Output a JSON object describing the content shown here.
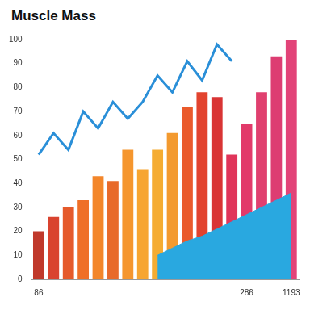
{
  "chart_data": {
    "type": "bar",
    "title": "Muscle Mass",
    "categories": [
      "86",
      null,
      null,
      null,
      null,
      null,
      null,
      null,
      null,
      null,
      null,
      null,
      null,
      null,
      "286",
      null,
      null,
      "1193"
    ],
    "series": [
      {
        "type": "area",
        "color": "#29a8e0",
        "values": [
          null,
          null,
          null,
          null,
          null,
          null,
          null,
          null,
          10,
          13,
          16,
          18,
          21,
          24,
          27,
          30,
          33,
          36
        ]
      },
      {
        "type": "bar",
        "colors": [
          "#c0392b",
          "#d9432f",
          "#e55a2b",
          "#ef6f27",
          "#f3862a",
          "#e86a2a",
          "#f5962e",
          "#f7a531",
          "#f5ac32",
          "#f39a2f",
          "#ea5a2b",
          "#e2432e",
          "#d93434",
          "#e0355a",
          "#e23a6a",
          "#e0406f",
          "#dd3d72",
          "#e24378"
        ],
        "values": [
          20,
          26,
          30,
          33,
          43,
          41,
          54,
          46,
          54,
          61,
          72,
          78,
          76,
          52,
          65,
          78,
          93,
          100
        ]
      },
      {
        "type": "line",
        "color": "#2a8fd8",
        "values": [
          52,
          61,
          54,
          70,
          63,
          74,
          67,
          74,
          85,
          78,
          91,
          83,
          98,
          91,
          null,
          null,
          null,
          null
        ]
      }
    ],
    "ylim": [
      0,
      100
    ],
    "yticks": [
      0,
      10,
      20,
      30,
      40,
      50,
      60,
      70,
      80,
      90,
      100
    ],
    "grid": false
  }
}
